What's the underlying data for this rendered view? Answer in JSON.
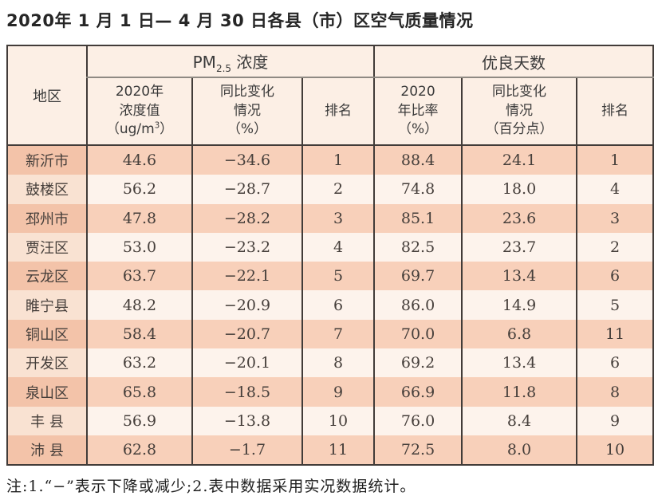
{
  "page": {
    "title": "2020年 1 月 1 日— 4 月 30 日各县（市）区空气质量情况",
    "note": "注:1.“−”表示下降或减少;2.表中数据采用实况数据统计。"
  },
  "table": {
    "header": {
      "region": "地区",
      "pm_group": {
        "pre": "PM",
        "sub": "2.5",
        "post": " 浓度"
      },
      "good_group": "优良天数",
      "conc": {
        "l1": "2020年",
        "l2": "浓度值",
        "unit_pre": "（ug/m",
        "unit_sup": "3",
        "unit_post": "）"
      },
      "pm_change": {
        "l1": "同比变化",
        "l2": "情况",
        "l3": "（%）"
      },
      "pm_rank": "排名",
      "ratio": {
        "l1": "2020",
        "l2": "年比率",
        "l3": "（%）"
      },
      "good_change": {
        "l1": "同比变化",
        "l2": "情况",
        "l3": "（百分点）"
      },
      "good_rank": "排名"
    },
    "rows": [
      {
        "region": "新沂市",
        "conc": "44.6",
        "pm_change": "−34.6",
        "pm_rank": "1",
        "ratio": "88.4",
        "good_change": "24.1",
        "good_rank": "1"
      },
      {
        "region": "鼓楼区",
        "conc": "56.2",
        "pm_change": "−28.7",
        "pm_rank": "2",
        "ratio": "74.8",
        "good_change": "18.0",
        "good_rank": "4"
      },
      {
        "region": "邳州市",
        "conc": "47.8",
        "pm_change": "−28.2",
        "pm_rank": "3",
        "ratio": "85.1",
        "good_change": "23.6",
        "good_rank": "3"
      },
      {
        "region": "贾汪区",
        "conc": "53.0",
        "pm_change": "−23.2",
        "pm_rank": "4",
        "ratio": "82.5",
        "good_change": "23.7",
        "good_rank": "2"
      },
      {
        "region": "云龙区",
        "conc": "63.7",
        "pm_change": "−22.1",
        "pm_rank": "5",
        "ratio": "69.7",
        "good_change": "13.4",
        "good_rank": "6"
      },
      {
        "region": "睢宁县",
        "conc": "48.2",
        "pm_change": "−20.9",
        "pm_rank": "6",
        "ratio": "86.0",
        "good_change": "14.9",
        "good_rank": "5"
      },
      {
        "region": "铜山区",
        "conc": "58.4",
        "pm_change": "−20.7",
        "pm_rank": "7",
        "ratio": "70.0",
        "good_change": "6.8",
        "good_rank": "11"
      },
      {
        "region": "开发区",
        "conc": "63.2",
        "pm_change": "−20.1",
        "pm_rank": "8",
        "ratio": "69.2",
        "good_change": "13.4",
        "good_rank": "6"
      },
      {
        "region": "泉山区",
        "conc": "65.8",
        "pm_change": "−18.5",
        "pm_rank": "9",
        "ratio": "66.9",
        "good_change": "11.8",
        "good_rank": "8"
      },
      {
        "region": "丰 县",
        "conc": "56.9",
        "pm_change": "−13.8",
        "pm_rank": "10",
        "ratio": "76.0",
        "good_change": "8.4",
        "good_rank": "9"
      },
      {
        "region": "沛 县",
        "conc": "62.8",
        "pm_change": "−1.7",
        "pm_rank": "11",
        "ratio": "72.5",
        "good_change": "8.0",
        "good_rank": "10"
      }
    ]
  },
  "colors": {
    "header_bg": "#fcefe5",
    "row_odd_region": "#f3c3a9",
    "row_odd_cell": "#f8d0ba",
    "row_even_region": "#f9e2d2",
    "row_even_cell": "#fdf3ec",
    "border_dark": "#423c39",
    "border_gray": "#8f8a83"
  }
}
